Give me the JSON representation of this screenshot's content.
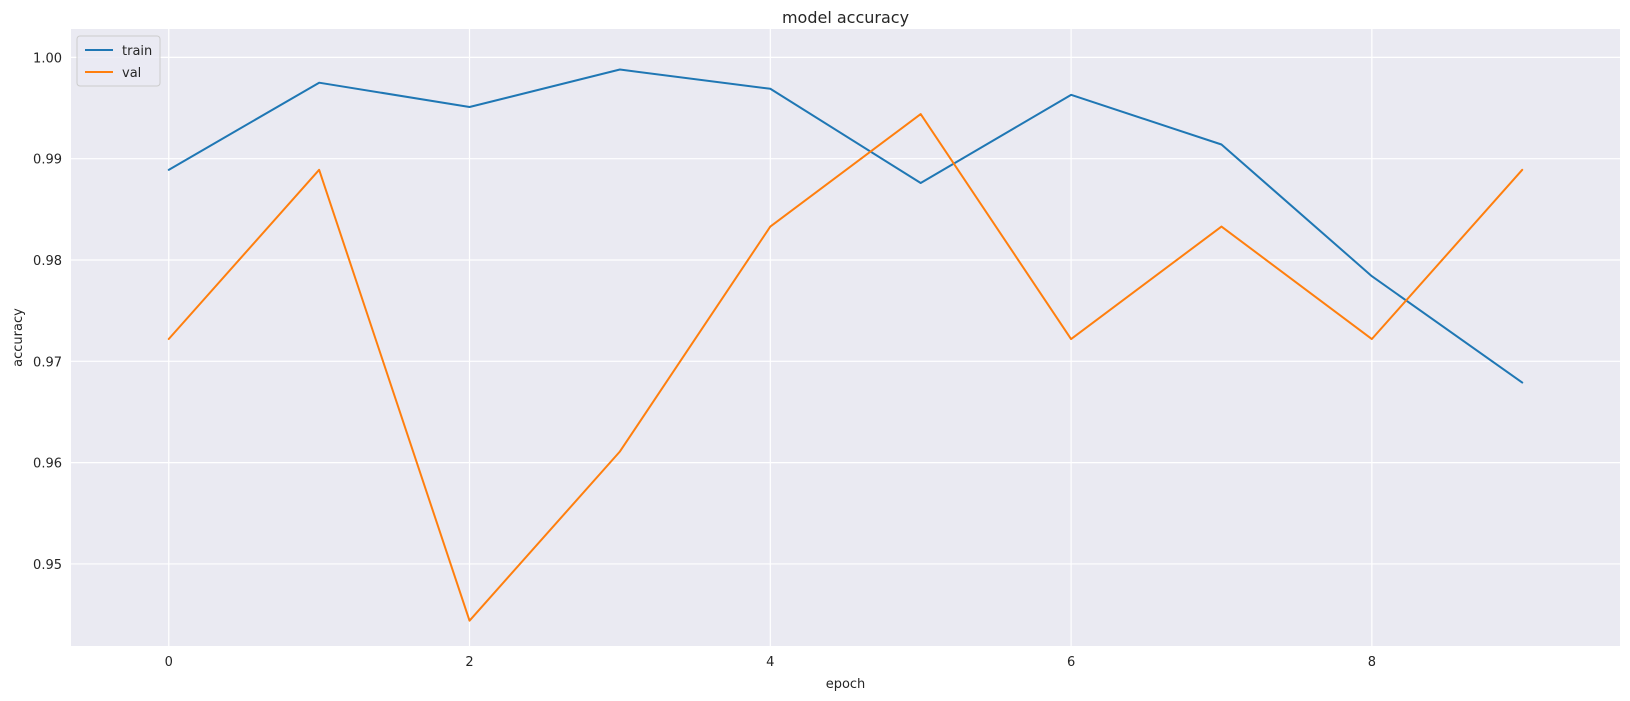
{
  "chart_data": {
    "type": "line",
    "title": "model accuracy",
    "xlabel": "epoch",
    "ylabel": "accuracy",
    "x": [
      0,
      1,
      2,
      3,
      4,
      5,
      6,
      7,
      8,
      9
    ],
    "xticks": [
      0,
      2,
      4,
      6,
      8
    ],
    "yticks": [
      0.95,
      0.96,
      0.97,
      0.98,
      0.99,
      1.0
    ],
    "ytick_labels": [
      "0.95",
      "0.96",
      "0.97",
      "0.98",
      "0.99",
      "1.00"
    ],
    "xlim": [
      -0.65,
      9.65
    ],
    "ylim": [
      0.9419,
      1.0028
    ],
    "grid": true,
    "legend_position": "upper left",
    "series": [
      {
        "name": "train",
        "color": "#1f77b4",
        "values": [
          0.9889,
          0.9975,
          0.9951,
          0.9988,
          0.9969,
          0.9876,
          0.9963,
          0.9914,
          0.9784,
          0.9679
        ]
      },
      {
        "name": "val",
        "color": "#ff7f0e",
        "values": [
          0.9722,
          0.9889,
          0.9444,
          0.9611,
          0.9833,
          0.9944,
          0.9722,
          0.9833,
          0.9722,
          0.9889
        ]
      }
    ]
  }
}
